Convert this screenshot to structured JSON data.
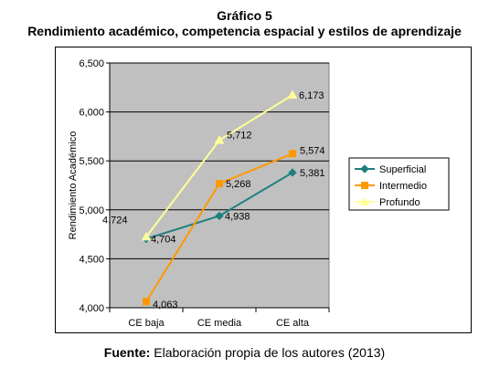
{
  "header": {
    "title": "Gráfico 5",
    "subtitle": "Rendimiento académico, competencia espacial y estilos de aprendizaje"
  },
  "footer": {
    "source_label": "Fuente:",
    "source_text": "Elaboración propia de los autores (2013)"
  },
  "chart_data": {
    "type": "line",
    "categories": [
      "CE baja",
      "CE media",
      "CE alta"
    ],
    "ylabel": "Rendimiento Académico",
    "xlabel": "",
    "ylim": [
      4.0,
      6.5
    ],
    "yticks": [
      4.0,
      4.5,
      5.0,
      5.5,
      6.0,
      6.5
    ],
    "ytick_labels": [
      "4,000",
      "4,500",
      "5,000",
      "5,500",
      "6,000",
      "6,500"
    ],
    "grid": true,
    "legend": "right",
    "plot_background": "#c0c0c0",
    "series": [
      {
        "name": "Superficial",
        "values": [
          4.704,
          4.938,
          5.381
        ],
        "labels": [
          "4,704",
          "4,938",
          "5,381"
        ],
        "color": "#1f7f7f",
        "marker": "diamond"
      },
      {
        "name": "Intermedio",
        "values": [
          4.063,
          5.268,
          5.574
        ],
        "labels": [
          "4,063",
          "5,268",
          "5,574"
        ],
        "color": "#ff9900",
        "marker": "square"
      },
      {
        "name": "Profundo",
        "values": [
          4.724,
          5.712,
          6.173
        ],
        "labels": [
          "4,724",
          "5,712",
          "6,173"
        ],
        "color": "#ffff99",
        "marker": "triangle"
      }
    ]
  }
}
